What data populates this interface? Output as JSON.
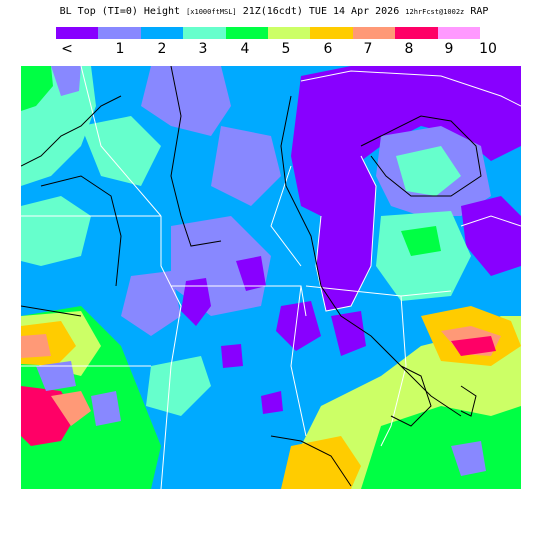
{
  "title": {
    "main": "BL Top (TI=0) Height",
    "units": "[x1000ftMSL]",
    "valid": "21Z(16cdt) TUE 14 Apr 2026",
    "init": "12hrFcst@1002z",
    "model": "RAP"
  },
  "legend": {
    "colors": [
      "#8800ff",
      "#8888ff",
      "#00aaff",
      "#66ffcc",
      "#00ff44",
      "#ccff66",
      "#ffcc00",
      "#ff9977",
      "#ff0066",
      "#ff99ff"
    ],
    "tick_labels": [
      "<",
      "1",
      "2",
      "3",
      "4",
      "5",
      "6",
      "7",
      "8",
      "9",
      "10"
    ]
  }
}
